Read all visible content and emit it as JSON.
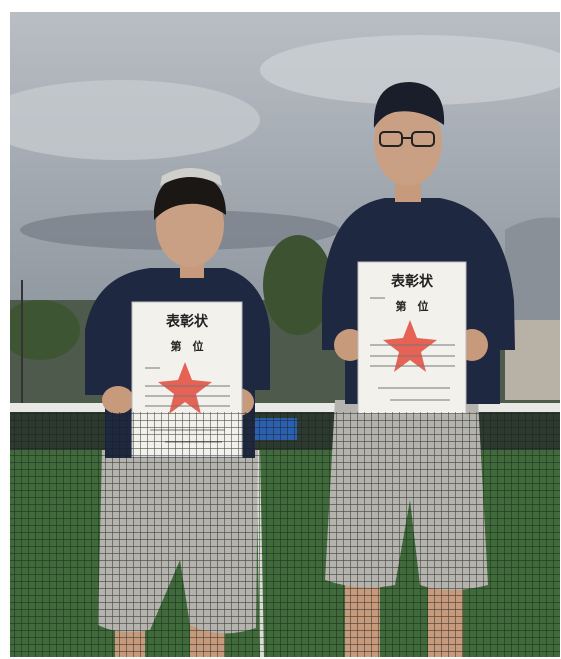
{
  "certificates": [
    {
      "title": "表彰状",
      "rank": "第　位"
    },
    {
      "title": "表彰状",
      "rank": "第　位"
    }
  ]
}
